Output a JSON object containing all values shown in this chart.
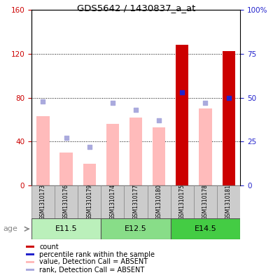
{
  "title": "GDS5642 / 1430837_a_at",
  "samples": [
    "GSM1310173",
    "GSM1310176",
    "GSM1310179",
    "GSM1310174",
    "GSM1310177",
    "GSM1310180",
    "GSM1310175",
    "GSM1310178",
    "GSM1310181"
  ],
  "age_groups": [
    {
      "label": "E11.5",
      "start": 0,
      "end": 3,
      "color": "#bbf0bb"
    },
    {
      "label": "E12.5",
      "start": 3,
      "end": 6,
      "color": "#88dd88"
    },
    {
      "label": "E14.5",
      "start": 6,
      "end": 9,
      "color": "#44cc44"
    }
  ],
  "value_absent": [
    63,
    30,
    20,
    56,
    62,
    53,
    0,
    70,
    0
  ],
  "rank_absent_pct": [
    48,
    27,
    22,
    47,
    43,
    37,
    0,
    47,
    0
  ],
  "count_value": [
    0,
    0,
    0,
    0,
    0,
    0,
    128,
    0,
    122
  ],
  "count_rank_pct": [
    0,
    0,
    0,
    0,
    0,
    0,
    53,
    0,
    50
  ],
  "ylim_left": [
    0,
    160
  ],
  "ylim_right": [
    0,
    100
  ],
  "yticks_left": [
    0,
    40,
    80,
    120,
    160
  ],
  "yticks_right": [
    0,
    25,
    50,
    75,
    100
  ],
  "yticklabels_right": [
    "0",
    "25",
    "50",
    "75",
    "100%"
  ],
  "color_count": "#cc0000",
  "color_rank_present": "#2222cc",
  "color_value_absent": "#ffbbbb",
  "color_rank_absent": "#aaaadd",
  "bar_width": 0.55,
  "legend_items": [
    {
      "color": "#cc0000",
      "label": "count"
    },
    {
      "color": "#2222cc",
      "label": "percentile rank within the sample"
    },
    {
      "color": "#ffbbbb",
      "label": "value, Detection Call = ABSENT"
    },
    {
      "color": "#aaaadd",
      "label": "rank, Detection Call = ABSENT"
    }
  ]
}
